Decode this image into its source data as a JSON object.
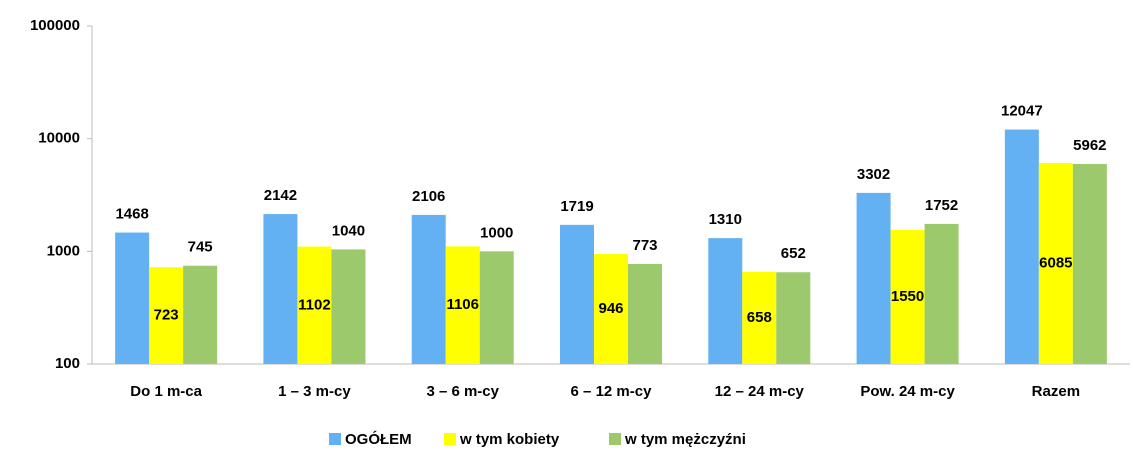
{
  "chart_data": {
    "type": "bar",
    "log_scale": true,
    "legend": "bottom",
    "categories": [
      "Do 1 m-ca",
      "1 – 3 m-cy",
      "3 – 6 m-cy",
      "6 – 12 m-cy",
      "12 – 24 m-cy",
      "Pow. 24 m-cy",
      "Razem"
    ],
    "series": [
      {
        "name": "OGÓŁEM",
        "color": "#63b1f3",
        "values": [
          1468,
          2142,
          2106,
          1719,
          1310,
          3302,
          12047
        ]
      },
      {
        "name": "w tym kobiety",
        "color": "#ffff00",
        "values": [
          723,
          1102,
          1106,
          946,
          658,
          1550,
          6085
        ]
      },
      {
        "name": "w tym mężczyźni",
        "color": "#9bc96b",
        "values": [
          745,
          1040,
          1000,
          773,
          652,
          1752,
          5962
        ]
      }
    ],
    "ylim": [
      100,
      100000
    ],
    "yticks": [
      100,
      1000,
      10000,
      100000
    ]
  }
}
